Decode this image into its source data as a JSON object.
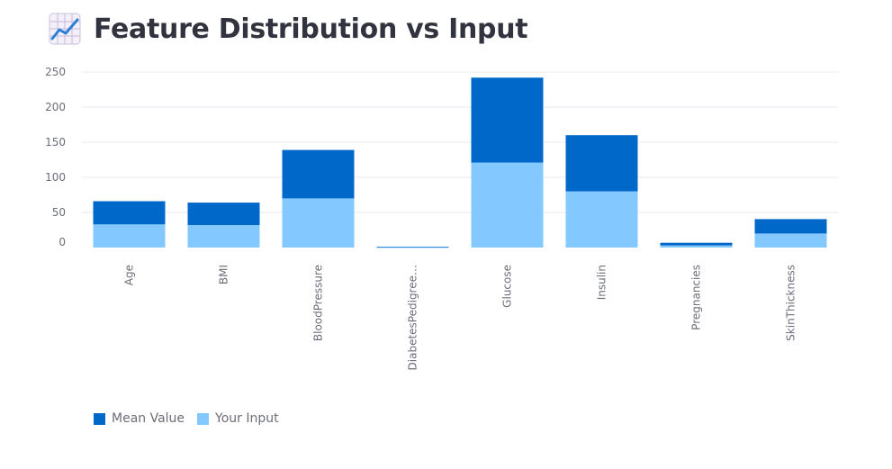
{
  "header": {
    "title": "Feature Distribution vs Input",
    "icon": "chart-increasing-icon"
  },
  "colors": {
    "mean": "#0068c9",
    "input": "#83c9ff",
    "grid": "#e6e9ef",
    "tick": "#6c6e78"
  },
  "chart_data": {
    "type": "bar",
    "stacked": true,
    "title": "",
    "xlabel": "",
    "ylabel": "",
    "ylim": [
      0,
      250
    ],
    "yticks": [
      0,
      50,
      100,
      150,
      200,
      250
    ],
    "grid": true,
    "legend_position": "bottom-left",
    "categories": [
      "Age",
      "BMI",
      "BloodPressure",
      "DiabetesPedigree…",
      "Glucose",
      "Insulin",
      "Pregnancies",
      "SkinThickness"
    ],
    "series": [
      {
        "name": "Your Input",
        "values": [
          33,
          32,
          70,
          0.5,
          121,
          80,
          3,
          20
        ]
      },
      {
        "name": "Mean Value",
        "values": [
          33,
          32,
          69,
          0.5,
          121,
          80,
          3.8,
          20.5
        ]
      }
    ]
  }
}
